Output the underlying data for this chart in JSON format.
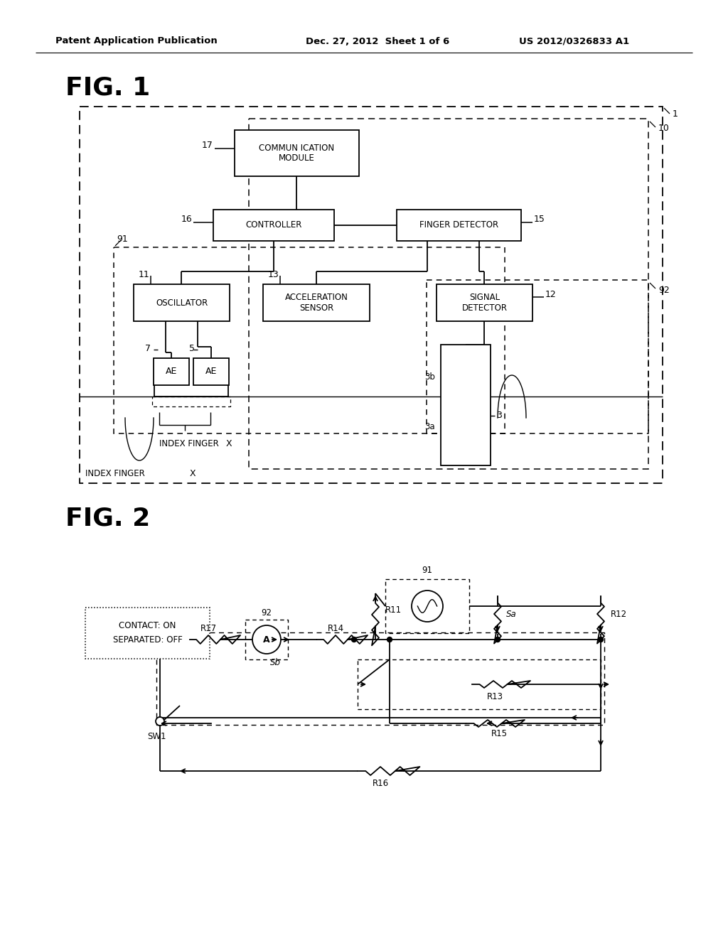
{
  "bg_color": "#ffffff",
  "header_left": "Patent Application Publication",
  "header_mid": "Dec. 27, 2012  Sheet 1 of 6",
  "header_right": "US 2012/0326833 A1",
  "fig1_title": "FIG. 1",
  "fig2_title": "FIG. 2"
}
